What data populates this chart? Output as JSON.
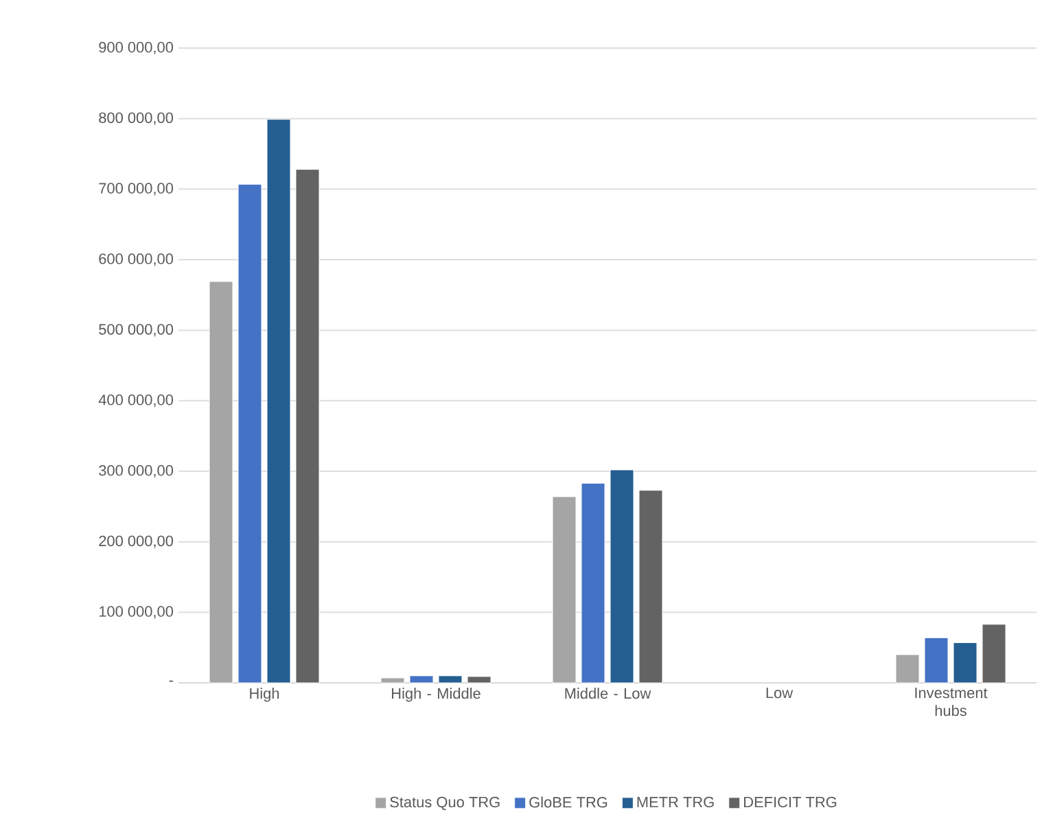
{
  "chart_data": {
    "type": "bar",
    "categories": [
      "High",
      "High - Middle",
      "Middle - Low",
      "Low",
      "Investment hubs"
    ],
    "series": [
      {
        "name": "Status Quo TRG",
        "color": "#a5a5a5",
        "values": [
          569000,
          7000,
          264000,
          null,
          40000
        ]
      },
      {
        "name": "GloBE TRG",
        "color": "#4472c4",
        "values": [
          707000,
          10000,
          283000,
          null,
          64000
        ]
      },
      {
        "name": "METR TRG",
        "color": "#255e91",
        "values": [
          799000,
          10000,
          302000,
          null,
          57000
        ]
      },
      {
        "name": "DEFICIT TRG",
        "color": "#636363",
        "values": [
          728000,
          9000,
          273000,
          null,
          83000
        ]
      }
    ],
    "ylim": [
      0,
      900000
    ],
    "yticks": [
      {
        "value": 0,
        "label": "-"
      },
      {
        "value": 100000,
        "label": "100 000,00"
      },
      {
        "value": 200000,
        "label": "200 000,00"
      },
      {
        "value": 300000,
        "label": "300 000,00"
      },
      {
        "value": 400000,
        "label": "400 000,00"
      },
      {
        "value": 500000,
        "label": "500 000,00"
      },
      {
        "value": 600000,
        "label": "600 000,00"
      },
      {
        "value": 700000,
        "label": "700 000,00"
      },
      {
        "value": 800000,
        "label": "800 000,00"
      },
      {
        "value": 900000,
        "label": "900 000,00"
      }
    ],
    "grid": "y",
    "legend": "bottom"
  }
}
